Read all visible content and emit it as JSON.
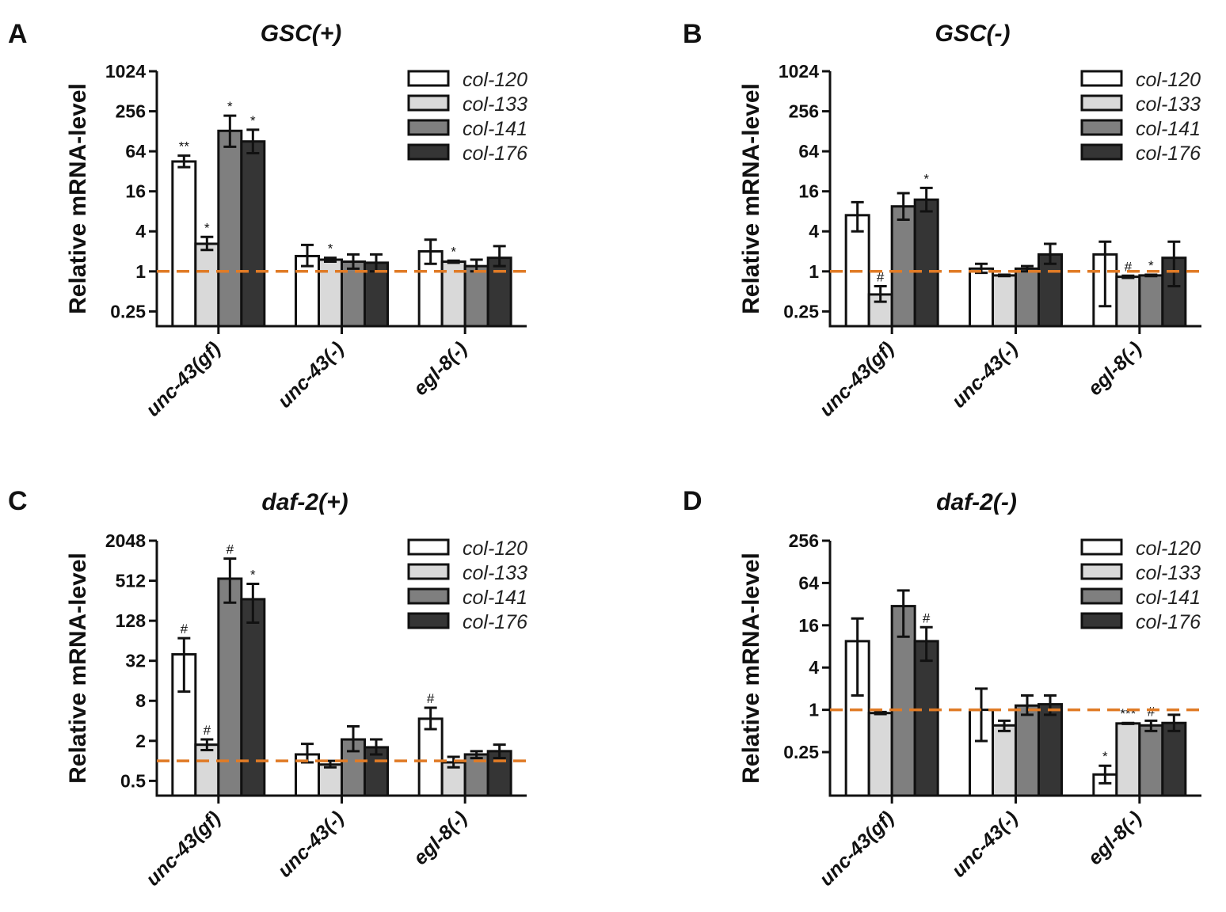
{
  "figure": {
    "colors": {
      "col-120": "#ffffff",
      "col-133": "#d9d9d9",
      "col-141": "#7f7f7f",
      "col-176": "#353535",
      "reference_line": "#e07b26"
    }
  },
  "chart_data": [
    {
      "panel": "A",
      "type": "bar",
      "title": "GSC(+)",
      "ylabel": "Relative mRNA-level",
      "xlabel": "",
      "yscale": "log2",
      "ylim": [
        0.15,
        1024
      ],
      "yticks": [
        0.25,
        1,
        4,
        16,
        64,
        256,
        1024
      ],
      "ytick_labels": [
        "0.25",
        "1",
        "4",
        "16",
        "64",
        "256",
        "1024"
      ],
      "reference_line": 1,
      "legend_position": "top-right",
      "categories": [
        "unc-43(gf)",
        "unc-43(-)",
        "egl-8(-)"
      ],
      "series": [
        {
          "name": "col-120",
          "values": [
            45,
            1.7,
            2.0
          ],
          "err_low": [
            37,
            1.2,
            1.3
          ],
          "err_high": [
            55,
            2.5,
            3.0
          ],
          "annotations": [
            "**",
            "",
            ""
          ]
        },
        {
          "name": "col-133",
          "values": [
            2.6,
            1.5,
            1.4
          ],
          "err_low": [
            2.1,
            1.4,
            1.35
          ],
          "err_high": [
            3.3,
            1.6,
            1.45
          ],
          "annotations": [
            "*",
            "*",
            "*"
          ]
        },
        {
          "name": "col-141",
          "values": [
            130,
            1.4,
            1.2
          ],
          "err_low": [
            75,
            1.1,
            1.0
          ],
          "err_high": [
            220,
            1.8,
            1.5
          ],
          "annotations": [
            "*",
            "",
            ""
          ]
        },
        {
          "name": "col-176",
          "values": [
            90,
            1.35,
            1.6
          ],
          "err_low": [
            60,
            1.0,
            1.2
          ],
          "err_high": [
            135,
            1.8,
            2.4
          ],
          "annotations": [
            "*",
            "",
            ""
          ]
        }
      ]
    },
    {
      "panel": "B",
      "type": "bar",
      "title": "GSC(-)",
      "ylabel": "Relative mRNA-level",
      "xlabel": "",
      "yscale": "log2",
      "ylim": [
        0.15,
        1024
      ],
      "yticks": [
        0.25,
        1,
        4,
        16,
        64,
        256,
        1024
      ],
      "ytick_labels": [
        "0.25",
        "1",
        "4",
        "16",
        "64",
        "256",
        "1024"
      ],
      "reference_line": 1,
      "legend_position": "top-right",
      "categories": [
        "unc-43(gf)",
        "unc-43(-)",
        "egl-8(-)"
      ],
      "series": [
        {
          "name": "col-120",
          "values": [
            7,
            1.1,
            1.8
          ],
          "err_low": [
            4,
            0.95,
            0.3
          ],
          "err_high": [
            11,
            1.3,
            2.8
          ],
          "annotations": [
            "",
            "",
            ""
          ]
        },
        {
          "name": "col-133",
          "values": [
            0.45,
            0.87,
            0.83
          ],
          "err_low": [
            0.35,
            0.85,
            0.8
          ],
          "err_high": [
            0.6,
            0.89,
            0.86
          ],
          "annotations": [
            "#",
            "",
            "#"
          ]
        },
        {
          "name": "col-141",
          "values": [
            9.5,
            1.1,
            0.87
          ],
          "err_low": [
            6,
            1.0,
            0.85
          ],
          "err_high": [
            15,
            1.2,
            0.89
          ],
          "annotations": [
            "",
            "",
            "*"
          ]
        },
        {
          "name": "col-176",
          "values": [
            12,
            1.8,
            1.6
          ],
          "err_low": [
            8,
            1.3,
            0.6
          ],
          "err_high": [
            18,
            2.6,
            2.8
          ],
          "annotations": [
            "*",
            "",
            ""
          ]
        }
      ]
    },
    {
      "panel": "C",
      "type": "bar",
      "title": "daf-2(+)",
      "ylabel": "Relative mRNA-level",
      "xlabel": "",
      "yscale": "log2",
      "ylim": [
        0.3,
        2048
      ],
      "yticks": [
        0.5,
        2,
        8,
        32,
        128,
        512,
        2048
      ],
      "ytick_labels": [
        "0.5",
        "2",
        "8",
        "32",
        "128",
        "512",
        "2048"
      ],
      "reference_line": 1,
      "legend_position": "top-right",
      "categories": [
        "unc-43(gf)",
        "unc-43(-)",
        "egl-8(-)"
      ],
      "series": [
        {
          "name": "col-120",
          "values": [
            40,
            1.25,
            4.3
          ],
          "err_low": [
            11,
            0.95,
            3.0
          ],
          "err_high": [
            70,
            1.8,
            6.3
          ],
          "annotations": [
            "#",
            "",
            "#"
          ]
        },
        {
          "name": "col-133",
          "values": [
            1.75,
            0.88,
            0.95
          ],
          "err_low": [
            1.45,
            0.8,
            0.8
          ],
          "err_high": [
            2.1,
            1.0,
            1.15
          ],
          "annotations": [
            "#",
            "",
            ""
          ]
        },
        {
          "name": "col-141",
          "values": [
            550,
            2.1,
            1.25
          ],
          "err_low": [
            240,
            1.4,
            1.1
          ],
          "err_high": [
            1100,
            3.3,
            1.4
          ],
          "annotations": [
            "#",
            "",
            ""
          ]
        },
        {
          "name": "col-176",
          "values": [
            270,
            1.6,
            1.4
          ],
          "err_low": [
            120,
            1.25,
            1.1
          ],
          "err_high": [
            460,
            2.1,
            1.75
          ],
          "annotations": [
            "*",
            "",
            ""
          ]
        }
      ]
    },
    {
      "panel": "D",
      "type": "bar",
      "title": "daf-2(-)",
      "ylabel": "Relative mRNA-level",
      "xlabel": "",
      "yscale": "log2",
      "ylim": [
        0.06,
        256
      ],
      "yticks": [
        0.25,
        1,
        4,
        16,
        64,
        256
      ],
      "ytick_labels": [
        "0.25",
        "1",
        "4",
        "16",
        "64",
        "256"
      ],
      "reference_line": 1,
      "legend_position": "top-right",
      "categories": [
        "unc-43(gf)",
        "unc-43(-)",
        "egl-8(-)"
      ],
      "series": [
        {
          "name": "col-120",
          "values": [
            9.5,
            1.0,
            0.12
          ],
          "err_low": [
            1.6,
            0.36,
            0.09
          ],
          "err_high": [
            20,
            2.0,
            0.16
          ],
          "annotations": [
            "",
            "",
            "*"
          ]
        },
        {
          "name": "col-133",
          "values": [
            0.9,
            0.6,
            0.64
          ],
          "err_low": [
            0.87,
            0.5,
            0.63
          ],
          "err_high": [
            0.93,
            0.7,
            0.65
          ],
          "annotations": [
            "",
            "",
            "***"
          ]
        },
        {
          "name": "col-141",
          "values": [
            30,
            1.15,
            0.6
          ],
          "err_low": [
            11,
            0.85,
            0.5
          ],
          "err_high": [
            50,
            1.6,
            0.7
          ],
          "annotations": [
            "",
            "",
            "#"
          ]
        },
        {
          "name": "col-176",
          "values": [
            9.5,
            1.2,
            0.65
          ],
          "err_low": [
            5,
            0.85,
            0.5
          ],
          "err_high": [
            15,
            1.6,
            0.85
          ],
          "annotations": [
            "#",
            "",
            ""
          ]
        }
      ]
    }
  ]
}
